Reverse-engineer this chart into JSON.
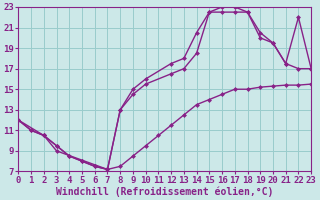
{
  "background_color": "#cce8e8",
  "grid_color": "#99cccc",
  "line_color": "#882288",
  "xlabel": "Windchill (Refroidissement éolien,°C)",
  "xlim": [
    0,
    23
  ],
  "ylim": [
    7,
    23
  ],
  "xticks": [
    0,
    1,
    2,
    3,
    4,
    5,
    6,
    7,
    8,
    9,
    10,
    11,
    12,
    13,
    14,
    15,
    16,
    17,
    18,
    19,
    20,
    21,
    22,
    23
  ],
  "yticks": [
    7,
    9,
    11,
    13,
    15,
    17,
    19,
    21,
    23
  ],
  "line1_x": [
    0,
    1,
    2,
    3,
    4,
    5,
    6,
    7,
    8,
    9,
    10,
    11,
    12,
    13,
    14,
    15,
    16,
    17,
    18,
    19,
    20,
    21,
    22,
    23
  ],
  "line1_y": [
    12,
    11,
    10.5,
    9.5,
    8.5,
    8.0,
    7.5,
    7.2,
    7.5,
    8.5,
    9.5,
    10.5,
    11.5,
    12.5,
    13.5,
    14.0,
    14.5,
    15.0,
    15.0,
    15.2,
    15.3,
    15.4,
    15.4,
    15.5
  ],
  "line2_x": [
    0,
    1,
    2,
    3,
    4,
    5,
    6,
    7,
    8,
    9,
    10,
    12,
    13,
    14,
    15,
    16,
    17,
    18,
    19,
    20,
    21,
    22,
    23
  ],
  "line2_y": [
    12,
    11,
    10.5,
    9.5,
    8.5,
    8.0,
    7.5,
    7.2,
    13.0,
    14.5,
    15.5,
    16.5,
    17.0,
    18.5,
    22.5,
    22.5,
    22.5,
    22.5,
    20.0,
    19.5,
    17.5,
    22.0,
    17.0
  ],
  "line3_x": [
    0,
    2,
    3,
    7,
    8,
    9,
    10,
    12,
    13,
    14,
    15,
    16,
    17,
    18,
    19,
    20,
    21,
    22,
    23
  ],
  "line3_y": [
    12,
    10.5,
    9.0,
    7.2,
    13.0,
    15.0,
    16.0,
    17.5,
    18.0,
    20.5,
    22.5,
    23.0,
    23.0,
    22.5,
    20.5,
    19.5,
    17.5,
    17.0,
    17.0
  ],
  "tick_fontsize": 6.5,
  "label_fontsize": 7,
  "line_width": 1.0,
  "marker_size": 2.5
}
